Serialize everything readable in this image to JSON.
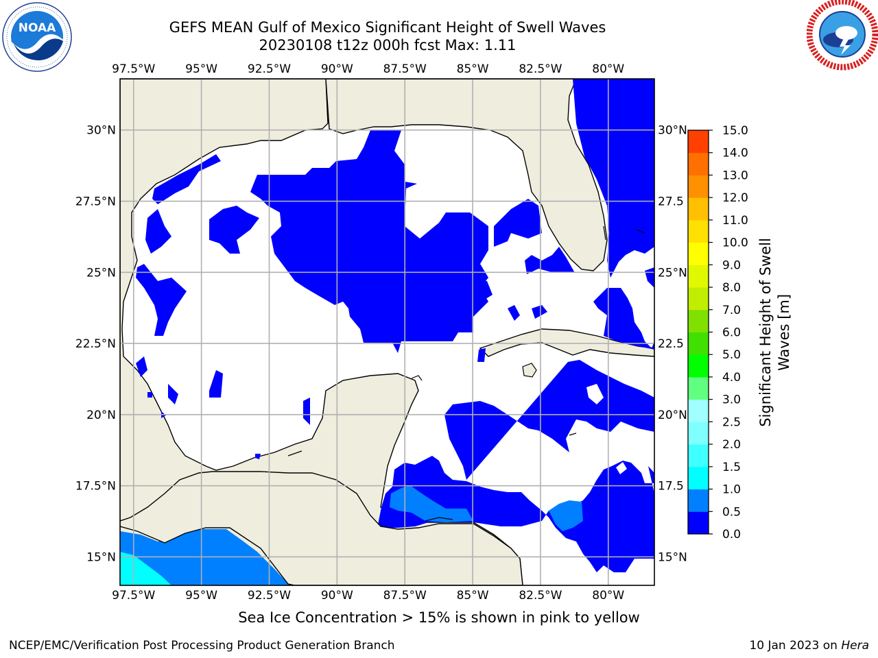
{
  "title_line1": "GEFS MEAN Gulf of Mexico Significant Height of Swell Waves",
  "title_line2": "20230108 t12z 000h fcst   Max: 1.11",
  "map": {
    "lon_labels": [
      "97.5°W",
      "95°W",
      "92.5°W",
      "90°W",
      "87.5°W",
      "85°W",
      "82.5°W",
      "80°W"
    ],
    "lon_values": [
      -97.5,
      -95,
      -92.5,
      -90,
      -87.5,
      -85,
      -82.5,
      -80
    ],
    "lat_labels_left": [
      "30°N",
      "27.5°N",
      "25°N",
      "22.5°N",
      "20°N",
      "17.5°N",
      "15°N"
    ],
    "lat_labels_right": [
      "30°N",
      "27.5",
      "25°N",
      "22.5",
      "20°N",
      "17.5",
      "15°N"
    ],
    "lat_values": [
      30,
      27.5,
      25,
      22.5,
      20,
      17.5,
      15
    ],
    "extent": {
      "lon_min": -98,
      "lon_max": -78.3,
      "lat_min": 14,
      "lat_max": 31.8
    },
    "colors": {
      "land": "#efedde",
      "water_low": "#0000ff",
      "water_mid": "#0080ff",
      "water_high": "#00ffff",
      "grid": "#b0b0b0"
    }
  },
  "colorbar": {
    "title_line1": "Significant Height of Swell",
    "title_line2": "Waves [m]",
    "tick_labels": [
      "0.0",
      "0.5",
      "1.0",
      "1.5",
      "2.0",
      "2.5",
      "3.0",
      "4.0",
      "5.0",
      "6.0",
      "7.0",
      "8.0",
      "9.0",
      "10.0",
      "11.0",
      "12.0",
      "13.0",
      "14.0",
      "15.0"
    ],
    "colors": [
      "#0000ff",
      "#0080ff",
      "#00ffff",
      "#40ffff",
      "#80ffff",
      "#a0ffff",
      "#60ff80",
      "#00ff00",
      "#40e000",
      "#80e000",
      "#c0ee00",
      "#e0f800",
      "#ffff00",
      "#ffe000",
      "#ffc000",
      "#ff9000",
      "#ff7000",
      "#ff4000",
      "#ff0000"
    ]
  },
  "note": "Sea Ice Concentration > 15% is shown in pink to yellow",
  "footer_left": "NCEP/EMC/Verification Post Processing Product Generation Branch",
  "footer_date": "10 Jan 2023 on ",
  "footer_machine": "Hera",
  "logos": {
    "left": "noaa-logo",
    "right": "nws-logo"
  }
}
